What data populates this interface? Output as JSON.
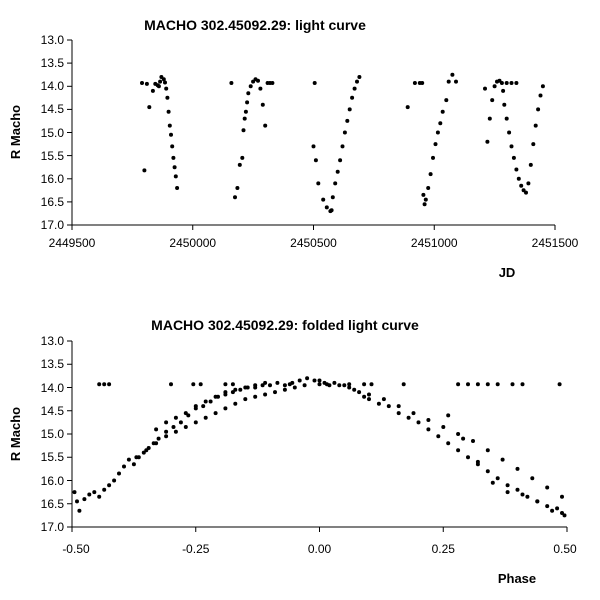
{
  "chart_data": [
    {
      "type": "scatter",
      "title": "MACHO 302.45092.29: light curve",
      "xlabel": "JD",
      "ylabel": "R Macho",
      "xlim": [
        2449500,
        2451500
      ],
      "ylim": [
        13.0,
        17.0
      ],
      "y_inverted": true,
      "grid": false,
      "x_ticks": [
        "2449500",
        "2450000",
        "2450500",
        "2451000",
        "2451500"
      ],
      "y_ticks": [
        "13.0",
        "13.5",
        "14.0",
        "14.5",
        "15.0",
        "15.5",
        "16.0",
        "16.5",
        "17.0"
      ],
      "series": [
        {
          "color": "#000000",
          "points": [
            [
              2449790,
              13.93
            ],
            [
              2449800,
              15.82
            ],
            [
              2449810,
              13.95
            ],
            [
              2449820,
              14.45
            ],
            [
              2449835,
              14.1
            ],
            [
              2449845,
              13.95
            ],
            [
              2449855,
              13.98
            ],
            [
              2449860,
              14.0
            ],
            [
              2449865,
              13.9
            ],
            [
              2449870,
              13.8
            ],
            [
              2449880,
              13.85
            ],
            [
              2449885,
              13.92
            ],
            [
              2449890,
              14.05
            ],
            [
              2449895,
              14.25
            ],
            [
              2449900,
              14.55
            ],
            [
              2449905,
              14.85
            ],
            [
              2449910,
              15.05
            ],
            [
              2449915,
              15.3
            ],
            [
              2449920,
              15.55
            ],
            [
              2449925,
              15.75
            ],
            [
              2449930,
              15.95
            ],
            [
              2449935,
              16.2
            ],
            [
              2450160,
              13.93
            ],
            [
              2450175,
              16.4
            ],
            [
              2450185,
              16.2
            ],
            [
              2450195,
              15.7
            ],
            [
              2450205,
              15.55
            ],
            [
              2450210,
              14.95
            ],
            [
              2450215,
              14.7
            ],
            [
              2450220,
              14.55
            ],
            [
              2450225,
              14.35
            ],
            [
              2450230,
              14.15
            ],
            [
              2450240,
              14.0
            ],
            [
              2450250,
              13.9
            ],
            [
              2450260,
              13.85
            ],
            [
              2450270,
              13.88
            ],
            [
              2450280,
              14.05
            ],
            [
              2450290,
              14.4
            ],
            [
              2450300,
              14.85
            ],
            [
              2450310,
              13.93
            ],
            [
              2450320,
              13.93
            ],
            [
              2450330,
              13.93
            ],
            [
              2450500,
              15.3
            ],
            [
              2450505,
              13.93
            ],
            [
              2450510,
              15.6
            ],
            [
              2450520,
              16.1
            ],
            [
              2450540,
              16.45
            ],
            [
              2450555,
              16.62
            ],
            [
              2450570,
              16.7
            ],
            [
              2450575,
              16.68
            ],
            [
              2450580,
              16.4
            ],
            [
              2450590,
              16.1
            ],
            [
              2450600,
              15.85
            ],
            [
              2450610,
              15.6
            ],
            [
              2450620,
              15.3
            ],
            [
              2450630,
              15.0
            ],
            [
              2450640,
              14.75
            ],
            [
              2450650,
              14.5
            ],
            [
              2450660,
              14.25
            ],
            [
              2450670,
              14.05
            ],
            [
              2450680,
              13.9
            ],
            [
              2450690,
              13.8
            ],
            [
              2450890,
              14.45
            ],
            [
              2450920,
              13.93
            ],
            [
              2450940,
              13.93
            ],
            [
              2450950,
              13.93
            ],
            [
              2450955,
              16.35
            ],
            [
              2450960,
              16.55
            ],
            [
              2450965,
              16.45
            ],
            [
              2450975,
              16.2
            ],
            [
              2450985,
              15.9
            ],
            [
              2450995,
              15.55
            ],
            [
              2451005,
              15.25
            ],
            [
              2451015,
              15.0
            ],
            [
              2451025,
              14.8
            ],
            [
              2451035,
              14.55
            ],
            [
              2451050,
              14.3
            ],
            [
              2451060,
              13.9
            ],
            [
              2451075,
              13.75
            ],
            [
              2451090,
              13.9
            ],
            [
              2451210,
              14.05
            ],
            [
              2451220,
              15.2
            ],
            [
              2451230,
              14.7
            ],
            [
              2451240,
              14.3
            ],
            [
              2451250,
              14.0
            ],
            [
              2451260,
              13.9
            ],
            [
              2451270,
              13.88
            ],
            [
              2451280,
              13.93
            ],
            [
              2451285,
              14.1
            ],
            [
              2451290,
              14.4
            ],
            [
              2451300,
              14.7
            ],
            [
              2451310,
              15.0
            ],
            [
              2451320,
              15.3
            ],
            [
              2451330,
              15.55
            ],
            [
              2451340,
              15.8
            ],
            [
              2451350,
              16.0
            ],
            [
              2451360,
              16.15
            ],
            [
              2451370,
              16.25
            ],
            [
              2451380,
              16.3
            ],
            [
              2451390,
              16.1
            ],
            [
              2451400,
              15.7
            ],
            [
              2451410,
              15.25
            ],
            [
              2451420,
              14.85
            ],
            [
              2451430,
              14.5
            ],
            [
              2451440,
              14.2
            ],
            [
              2451450,
              14.0
            ],
            [
              2451300,
              13.93
            ],
            [
              2451320,
              13.93
            ],
            [
              2451340,
              13.93
            ]
          ]
        }
      ]
    },
    {
      "type": "scatter",
      "title": "MACHO 302.45092.29: folded light curve",
      "xlabel": "Phase",
      "ylabel": "R Macho",
      "xlim": [
        -0.5,
        0.5
      ],
      "ylim": [
        13.0,
        17.0
      ],
      "y_inverted": true,
      "grid": false,
      "x_ticks": [
        "-0.50",
        "-0.25",
        "0.00",
        "0.25",
        "0.50"
      ],
      "y_ticks": [
        "13.0",
        "13.5",
        "14.0",
        "14.5",
        "15.0",
        "15.5",
        "16.0",
        "16.5",
        "17.0"
      ],
      "series": [
        {
          "color": "#000000",
          "points": [
            [
              -0.495,
              16.25
            ],
            [
              -0.49,
              16.45
            ],
            [
              -0.485,
              16.65
            ],
            [
              -0.475,
              16.4
            ],
            [
              -0.465,
              16.3
            ],
            [
              -0.455,
              16.25
            ],
            [
              -0.445,
              16.35
            ],
            [
              -0.435,
              16.2
            ],
            [
              -0.425,
              16.1
            ],
            [
              -0.415,
              16.0
            ],
            [
              -0.405,
              15.85
            ],
            [
              -0.395,
              15.7
            ],
            [
              -0.385,
              15.55
            ],
            [
              -0.375,
              15.65
            ],
            [
              -0.365,
              15.5
            ],
            [
              -0.355,
              15.4
            ],
            [
              -0.345,
              15.3
            ],
            [
              -0.335,
              15.2
            ],
            [
              -0.325,
              15.1
            ],
            [
              -0.31,
              14.95
            ],
            [
              -0.295,
              14.85
            ],
            [
              -0.28,
              14.75
            ],
            [
              -0.265,
              14.6
            ],
            [
              -0.25,
              14.45
            ],
            [
              -0.235,
              14.4
            ],
            [
              -0.22,
              14.3
            ],
            [
              -0.205,
              14.2
            ],
            [
              -0.19,
              14.15
            ],
            [
              -0.175,
              14.1
            ],
            [
              -0.16,
              14.05
            ],
            [
              -0.145,
              14.0
            ],
            [
              -0.13,
              14.0
            ],
            [
              -0.115,
              13.95
            ],
            [
              -0.1,
              13.95
            ],
            [
              -0.085,
              13.9
            ],
            [
              -0.07,
              13.95
            ],
            [
              -0.055,
              13.9
            ],
            [
              -0.04,
              13.85
            ],
            [
              -0.025,
              13.8
            ],
            [
              -0.01,
              13.85
            ],
            [
              -0.33,
              14.9
            ],
            [
              -0.31,
              14.75
            ],
            [
              -0.29,
              14.65
            ],
            [
              -0.27,
              14.55
            ],
            [
              -0.25,
              14.4
            ],
            [
              -0.23,
              14.3
            ],
            [
              -0.21,
              14.2
            ],
            [
              -0.19,
              14.1
            ],
            [
              -0.17,
              14.05
            ],
            [
              -0.15,
              14.0
            ],
            [
              -0.13,
              13.95
            ],
            [
              -0.11,
              13.9
            ],
            [
              -0.37,
              15.5
            ],
            [
              -0.35,
              15.35
            ],
            [
              -0.33,
              15.2
            ],
            [
              -0.31,
              15.05
            ],
            [
              -0.29,
              14.95
            ],
            [
              -0.27,
              14.85
            ],
            [
              -0.25,
              14.75
            ],
            [
              -0.23,
              14.65
            ],
            [
              -0.21,
              14.55
            ],
            [
              -0.19,
              14.45
            ],
            [
              -0.17,
              14.35
            ],
            [
              -0.15,
              14.25
            ],
            [
              -0.13,
              14.2
            ],
            [
              -0.11,
              14.15
            ],
            [
              -0.09,
              14.1
            ],
            [
              -0.07,
              14.05
            ],
            [
              -0.05,
              14.0
            ],
            [
              -0.03,
              13.95
            ],
            [
              0.0,
              13.85
            ],
            [
              0.01,
              13.9
            ],
            [
              0.02,
              13.95
            ],
            [
              0.03,
              13.9
            ],
            [
              0.04,
              13.95
            ],
            [
              0.05,
              13.95
            ],
            [
              0.06,
              14.0
            ],
            [
              0.07,
              14.05
            ],
            [
              0.08,
              14.1
            ],
            [
              0.09,
              14.2
            ],
            [
              0.1,
              14.25
            ],
            [
              0.12,
              14.35
            ],
            [
              0.14,
              14.4
            ],
            [
              0.16,
              14.55
            ],
            [
              0.18,
              14.65
            ],
            [
              0.2,
              14.75
            ],
            [
              0.22,
              14.9
            ],
            [
              0.24,
              15.05
            ],
            [
              0.26,
              15.2
            ],
            [
              0.28,
              15.35
            ],
            [
              0.3,
              15.5
            ],
            [
              0.32,
              15.65
            ],
            [
              0.34,
              15.8
            ],
            [
              0.36,
              15.95
            ],
            [
              0.38,
              16.1
            ],
            [
              0.4,
              16.2
            ],
            [
              0.42,
              16.35
            ],
            [
              0.44,
              16.45
            ],
            [
              0.46,
              16.55
            ],
            [
              0.48,
              16.6
            ],
            [
              0.49,
              16.7
            ],
            [
              0.495,
              16.75
            ],
            [
              0.1,
              14.15
            ],
            [
              0.13,
              14.25
            ],
            [
              0.16,
              14.4
            ],
            [
              0.19,
              14.55
            ],
            [
              0.22,
              14.7
            ],
            [
              0.25,
              14.85
            ],
            [
              0.28,
              15.0
            ],
            [
              0.31,
              15.15
            ],
            [
              0.34,
              15.35
            ],
            [
              0.37,
              15.55
            ],
            [
              0.4,
              15.75
            ],
            [
              0.43,
              15.95
            ],
            [
              0.46,
              16.15
            ],
            [
              0.49,
              16.35
            ],
            [
              0.26,
              14.6
            ],
            [
              0.29,
              15.1
            ],
            [
              0.32,
              15.6
            ],
            [
              0.35,
              16.05
            ],
            [
              0.38,
              16.25
            ],
            [
              0.41,
              16.3
            ],
            [
              0.44,
              16.45
            ],
            [
              0.47,
              16.65
            ],
            [
              -0.445,
              13.93
            ],
            [
              -0.435,
              13.93
            ],
            [
              -0.425,
              13.93
            ],
            [
              -0.3,
              13.93
            ],
            [
              -0.255,
              13.93
            ],
            [
              -0.24,
              13.93
            ],
            [
              -0.19,
              13.93
            ],
            [
              -0.175,
              13.93
            ],
            [
              -0.06,
              13.93
            ],
            [
              0.0,
              13.93
            ],
            [
              0.015,
              13.93
            ],
            [
              0.06,
              13.93
            ],
            [
              0.09,
              13.93
            ],
            [
              0.105,
              13.93
            ],
            [
              0.17,
              13.93
            ],
            [
              0.28,
              13.93
            ],
            [
              0.3,
              13.93
            ],
            [
              0.32,
              13.93
            ],
            [
              0.34,
              13.93
            ],
            [
              0.36,
              13.93
            ],
            [
              0.39,
              13.93
            ],
            [
              0.41,
              13.93
            ],
            [
              0.485,
              13.93
            ]
          ]
        }
      ]
    }
  ]
}
